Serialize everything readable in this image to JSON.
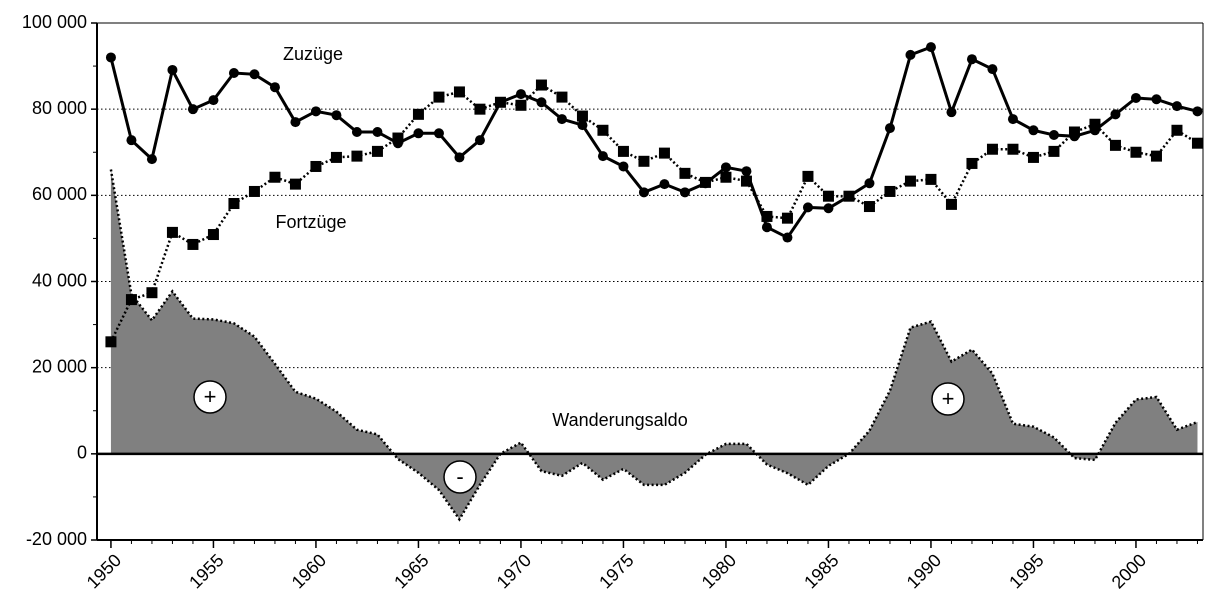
{
  "chart_data": {
    "type": "line",
    "x": [
      1950,
      1951,
      1952,
      1953,
      1954,
      1955,
      1956,
      1957,
      1958,
      1959,
      1960,
      1961,
      1962,
      1963,
      1964,
      1965,
      1966,
      1967,
      1968,
      1969,
      1970,
      1971,
      1972,
      1973,
      1974,
      1975,
      1976,
      1977,
      1978,
      1979,
      1980,
      1981,
      1982,
      1983,
      1984,
      1985,
      1986,
      1987,
      1988,
      1989,
      1990,
      1991,
      1992,
      1993,
      1994,
      1995,
      1996,
      1997,
      1998,
      1999,
      2000,
      2001,
      2002,
      2003
    ],
    "series": [
      {
        "name": "Zuzüge",
        "color": "#000000",
        "marker": "circle",
        "linestyle": "solid",
        "values": [
          92000,
          72800,
          68400,
          89100,
          80000,
          82100,
          88400,
          88100,
          85100,
          77000,
          79500,
          78600,
          74700,
          74700,
          72100,
          74400,
          74400,
          68800,
          72800,
          81600,
          83500,
          81600,
          77700,
          76300,
          69100,
          66700,
          60700,
          62600,
          60700,
          62800,
          66500,
          65600,
          52600,
          50200,
          57200,
          57000,
          59800,
          62800,
          75600,
          92600,
          94400,
          79300,
          91600,
          89300,
          77700,
          75100,
          74000,
          73700,
          75100,
          78800,
          82600,
          82300,
          80700,
          79500
        ]
      },
      {
        "name": "Fortzüge",
        "color": "#000000",
        "marker": "square",
        "linestyle": "dotted",
        "values": [
          26000,
          35800,
          37400,
          51400,
          48600,
          50900,
          58100,
          60900,
          64200,
          62600,
          66700,
          68800,
          69100,
          70200,
          73300,
          78800,
          82800,
          84000,
          80000,
          81600,
          80900,
          85600,
          82800,
          78400,
          75100,
          70200,
          67900,
          69800,
          65100,
          63000,
          64200,
          63300,
          55100,
          54700,
          64400,
          59800,
          59800,
          57400,
          60900,
          63300,
          63700,
          57900,
          67400,
          70700,
          70700,
          68800,
          70200,
          74700,
          76500,
          71600,
          70000,
          69100,
          75100,
          72100
        ]
      },
      {
        "name": "Wanderungsaldo",
        "color": "#808080",
        "marker": "none",
        "linestyle": "dotted",
        "fill": true,
        "values": [
          66000,
          37000,
          31000,
          37700,
          31400,
          31200,
          30300,
          27200,
          20900,
          14400,
          12800,
          9800,
          5600,
          4500,
          -1200,
          -4400,
          -8400,
          -15200,
          -7200,
          0,
          2600,
          -4000,
          -5100,
          -2100,
          -6000,
          -3500,
          -7200,
          -7200,
          -4400,
          -200,
          2300,
          2300,
          -2500,
          -4500,
          -7200,
          -2800,
          0,
          5400,
          14700,
          29300,
          30700,
          21400,
          24200,
          18600,
          7000,
          6300,
          3800,
          -1000,
          -1400,
          7200,
          12600,
          13200,
          5600,
          7400
        ]
      }
    ],
    "annotations": [
      "+",
      "-",
      "+"
    ],
    "xlim": [
      1949.32,
      2003.27
    ],
    "xticks": [
      1950,
      1955,
      1960,
      1965,
      1970,
      1975,
      1980,
      1985,
      1990,
      1995,
      2000
    ],
    "ylim": [
      -20000,
      100000
    ],
    "yticks": [
      {
        "value": -20000,
        "label": "-20 000"
      },
      0,
      {
        "value": 20000,
        "label": "20 000"
      },
      {
        "value": 40000,
        "label": "40 000"
      },
      {
        "value": 60000,
        "label": "60 000"
      },
      {
        "value": 80000,
        "label": "80 000"
      },
      {
        "value": 100000,
        "label": "100 000"
      }
    ],
    "grid": true
  }
}
